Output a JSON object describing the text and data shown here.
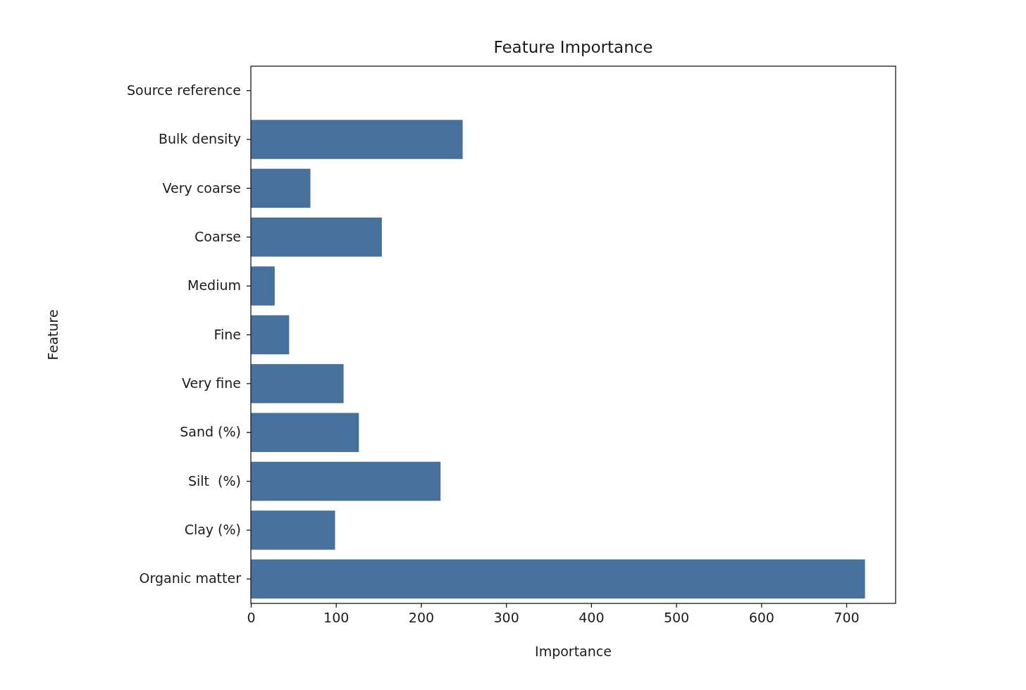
{
  "chart_data": {
    "type": "bar",
    "orientation": "horizontal",
    "title": "Feature Importance",
    "xlabel": "Importance",
    "ylabel": "Feature",
    "categories": [
      "Source reference",
      "Bulk density",
      "Very coarse",
      "Coarse",
      "Medium",
      "Fine",
      "Very fine",
      "Sand (%)",
      "Silt  (%)",
      "Clay (%)",
      "Organic matter"
    ],
    "values": [
      0,
      249,
      70,
      154,
      28,
      45,
      109,
      127,
      223,
      99,
      722
    ],
    "color": "#45719c",
    "xlim": [
      0,
      758
    ],
    "xticks": [
      0,
      100,
      200,
      300,
      400,
      500,
      600,
      700
    ]
  }
}
